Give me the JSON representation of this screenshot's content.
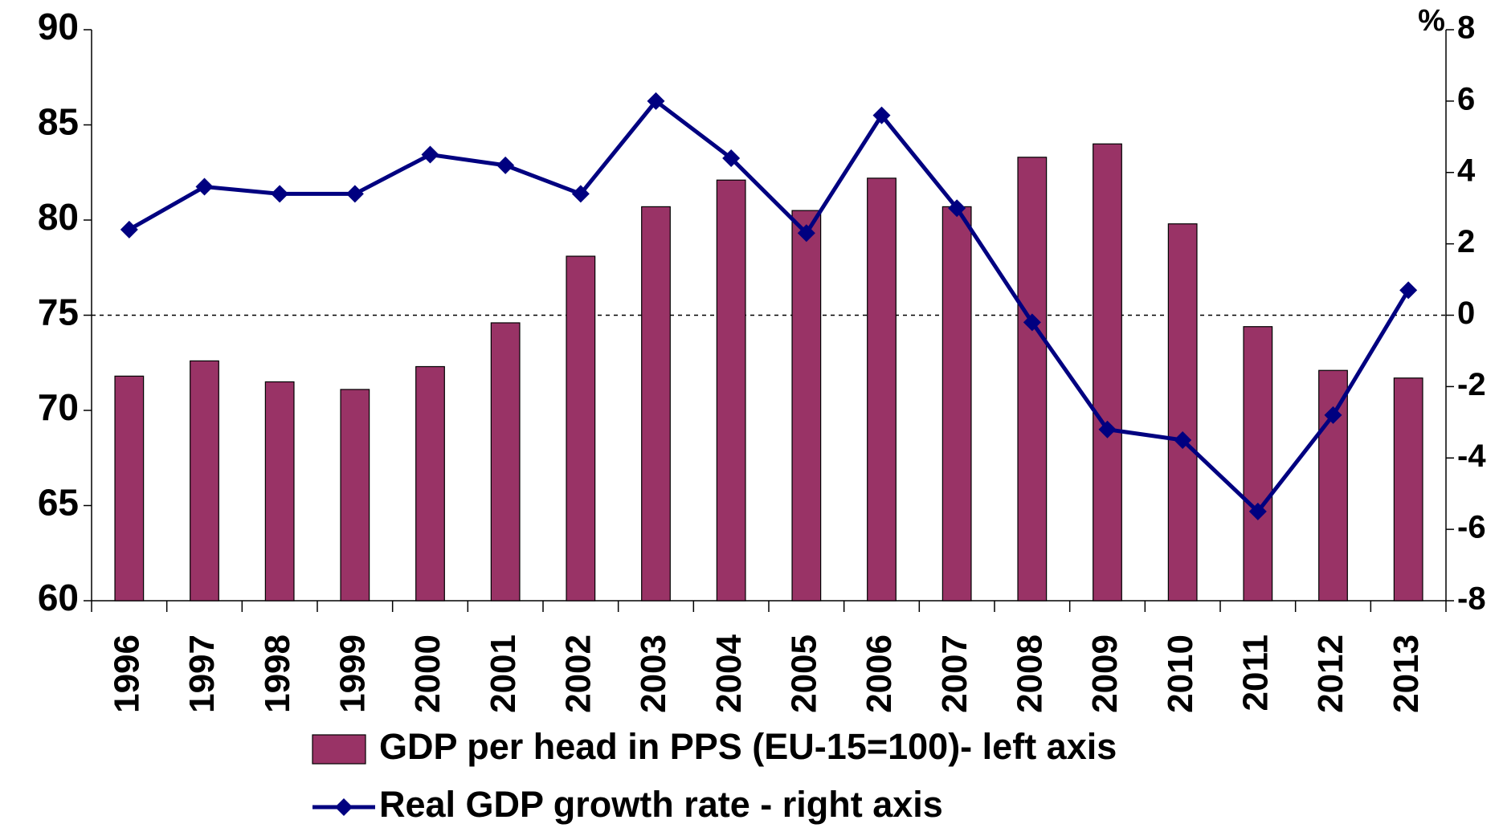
{
  "chart_data": {
    "type": "bar_line",
    "categories": [
      "1996",
      "1997",
      "1998",
      "1999",
      "2000",
      "2001",
      "2002",
      "2003",
      "2004",
      "2005",
      "2006",
      "2007",
      "2008",
      "2009",
      "2010",
      "2011",
      "2012",
      "2013"
    ],
    "series": [
      {
        "name": "GDP per head in PPS (EU-15=100)- left axis",
        "type": "bar",
        "color": "#993366",
        "values": [
          71.8,
          72.6,
          71.5,
          71.1,
          72.3,
          74.6,
          78.1,
          80.7,
          82.1,
          80.5,
          82.2,
          80.7,
          83.3,
          84.0,
          79.8,
          74.4,
          72.1,
          71.7
        ]
      },
      {
        "name": "Real GDP growth rate - right axis",
        "type": "line",
        "axis": "y2",
        "color": "#000080",
        "values": [
          2.4,
          3.6,
          3.4,
          3.4,
          4.5,
          4.2,
          3.4,
          6.0,
          4.4,
          2.3,
          5.6,
          3.0,
          -0.2,
          -3.2,
          -3.5,
          -5.5,
          -2.8,
          0.7
        ]
      }
    ],
    "ylim": [
      60,
      90
    ],
    "yticks": [
      60,
      65,
      70,
      75,
      80,
      85,
      90
    ],
    "y2lim": [
      -8,
      8
    ],
    "y2ticks": [
      -8,
      -6,
      -4,
      -2,
      0,
      2,
      4,
      6,
      8
    ],
    "y2label": "%",
    "reference_line": {
      "axis": "y2",
      "value": 0,
      "style": "dashed"
    },
    "legend": "bottom"
  }
}
